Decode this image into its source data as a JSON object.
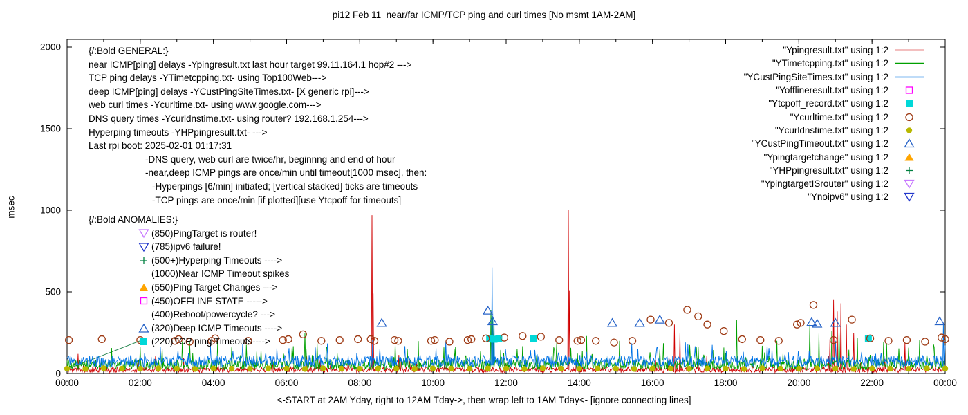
{
  "chart_data": {
    "type": "line",
    "title": "pi12 Feb 11  near/far ICMP/TCP ping and curl times [No msmt 1AM-2AM]",
    "xlabel": "<-START at 2AM Yday, right to 12AM Tday->, then wrap left to 1AM Tday<- [ignore connecting lines]",
    "ylabel": "msec",
    "ylim": [
      0,
      2050
    ],
    "xlim_hours": [
      0,
      24
    ],
    "grid": false,
    "legend_position": "top-right",
    "y_ticks": [
      {
        "v": 0,
        "t": "0"
      },
      {
        "v": 500,
        "t": "500"
      },
      {
        "v": 1000,
        "t": "1000"
      },
      {
        "v": 1500,
        "t": "1500"
      },
      {
        "v": 2000,
        "t": "2000"
      }
    ],
    "x_ticks": [
      {
        "h": 0,
        "t": "00:00"
      },
      {
        "h": 2,
        "t": "02:00"
      },
      {
        "h": 4,
        "t": "04:00"
      },
      {
        "h": 6,
        "t": "06:00"
      },
      {
        "h": 8,
        "t": "08:00"
      },
      {
        "h": 10,
        "t": "10:00"
      },
      {
        "h": 12,
        "t": "12:00"
      },
      {
        "h": 14,
        "t": "14:00"
      },
      {
        "h": 16,
        "t": "16:00"
      },
      {
        "h": 18,
        "t": "18:00"
      },
      {
        "h": 20,
        "t": "20:00"
      },
      {
        "h": 22,
        "t": "22:00"
      },
      {
        "h": 24,
        "t": "00:00"
      }
    ],
    "connectors": [
      {
        "color": "#2e8b57",
        "points": [
          [
            0.1,
            35
          ],
          [
            2.05,
            205
          ]
        ]
      }
    ],
    "series": [
      {
        "name": "Ypingresult.txt",
        "legend": "\"Ypingresult.txt\" using 1:2",
        "color": "#d00000",
        "style": "line",
        "seed": 101,
        "baseline": [
          6,
          40
        ],
        "spike_prob": 0.025,
        "spike_extra": 90,
        "spikes": [
          [
            0.3,
            120
          ],
          [
            8.33,
            970
          ],
          [
            8.37,
            490
          ],
          [
            13.7,
            1000
          ],
          [
            13.74,
            510
          ],
          [
            16.6,
            300
          ],
          [
            16.75,
            250
          ],
          [
            20.85,
            210
          ],
          [
            20.95,
            450
          ],
          [
            21.05,
            380
          ],
          [
            21.15,
            430
          ],
          [
            21.3,
            300
          ],
          [
            21.5,
            250
          ],
          [
            22.9,
            185
          ]
        ]
      },
      {
        "name": "YTimetcpping.txt",
        "legend": "\"YTimetcpping.txt\" using 1:2",
        "color": "#00a000",
        "style": "line",
        "seed": 202,
        "baseline": [
          22,
          85
        ],
        "spike_prob": 0.07,
        "spike_extra": 120,
        "spikes": [
          [
            2.6,
            150
          ],
          [
            3.35,
            190
          ],
          [
            4.5,
            160
          ],
          [
            5.3,
            145
          ],
          [
            6.5,
            250
          ],
          [
            7.1,
            160
          ],
          [
            9.3,
            150
          ],
          [
            10.3,
            160
          ],
          [
            11.58,
            390
          ],
          [
            11.64,
            350
          ],
          [
            12.3,
            150
          ],
          [
            13.3,
            160
          ],
          [
            14.2,
            230
          ],
          [
            15.1,
            200
          ],
          [
            16.3,
            185
          ],
          [
            17.2,
            160
          ],
          [
            18.3,
            330
          ],
          [
            19.0,
            170
          ],
          [
            19.4,
            200
          ],
          [
            20.3,
            300
          ],
          [
            20.55,
            245
          ],
          [
            20.9,
            260
          ],
          [
            21.1,
            265
          ],
          [
            21.6,
            220
          ],
          [
            22.4,
            185
          ],
          [
            23.3,
            205
          ],
          [
            23.7,
            160
          ]
        ]
      },
      {
        "name": "YCustPingSiteTimes.txt",
        "legend": "\"YCustPingSiteTimes.txt\" using 1:2",
        "color": "#0073e6",
        "style": "line",
        "seed": 303,
        "baseline": [
          40,
          110
        ],
        "spike_prob": 0.05,
        "spike_extra": 90,
        "spikes": [
          [
            8.35,
            205
          ],
          [
            11.62,
            650
          ],
          [
            11.66,
            380
          ],
          [
            16.9,
            190
          ],
          [
            21.0,
            200
          ],
          [
            23.95,
            310
          ]
        ]
      },
      {
        "name": "Yofflineresult.txt",
        "legend": "\"Yofflineresult.txt\" using 1:2",
        "color": "#ff00ff",
        "style": "points",
        "marker": "square-open",
        "points": []
      },
      {
        "name": "Ytcpoff_record.txt",
        "legend": "\"Ytcpoff_record.txt\" using 1:2",
        "color": "#00d8d8",
        "style": "points",
        "marker": "square-fill",
        "points": [
          [
            11.55,
            215
          ],
          [
            11.67,
            210
          ],
          [
            11.8,
            215
          ],
          [
            12.75,
            215
          ],
          [
            21.9,
            215
          ]
        ]
      },
      {
        "name": "Ycurltime.txt",
        "legend": "\"Ycurltime.txt\" using 1:2",
        "color": "#9e3a14",
        "style": "points",
        "marker": "circle-open",
        "points": [
          [
            0.05,
            205
          ],
          [
            0.95,
            210
          ],
          [
            2.0,
            205
          ],
          [
            2.95,
            200
          ],
          [
            3.05,
            210
          ],
          [
            3.35,
            195
          ],
          [
            3.95,
            200
          ],
          [
            4.05,
            215
          ],
          [
            4.95,
            200
          ],
          [
            5.9,
            205
          ],
          [
            6.05,
            210
          ],
          [
            6.45,
            240
          ],
          [
            6.95,
            200
          ],
          [
            7.45,
            205
          ],
          [
            7.95,
            210
          ],
          [
            8.3,
            210
          ],
          [
            8.4,
            200
          ],
          [
            8.95,
            205
          ],
          [
            9.05,
            200
          ],
          [
            9.95,
            200
          ],
          [
            10.05,
            205
          ],
          [
            10.45,
            195
          ],
          [
            10.95,
            205
          ],
          [
            11.05,
            210
          ],
          [
            11.45,
            215
          ],
          [
            11.95,
            220
          ],
          [
            12.45,
            230
          ],
          [
            12.95,
            225
          ],
          [
            13.45,
            205
          ],
          [
            13.95,
            200
          ],
          [
            14.05,
            205
          ],
          [
            14.45,
            200
          ],
          [
            14.95,
            190
          ],
          [
            15.45,
            200
          ],
          [
            15.95,
            330
          ],
          [
            16.45,
            310
          ],
          [
            16.95,
            390
          ],
          [
            17.25,
            350
          ],
          [
            17.5,
            300
          ],
          [
            17.95,
            260
          ],
          [
            18.45,
            210
          ],
          [
            18.95,
            205
          ],
          [
            19.45,
            200
          ],
          [
            19.95,
            300
          ],
          [
            20.05,
            310
          ],
          [
            20.4,
            420
          ],
          [
            20.95,
            205
          ],
          [
            21.45,
            330
          ],
          [
            21.95,
            215
          ],
          [
            22.45,
            200
          ],
          [
            22.95,
            205
          ],
          [
            23.45,
            195
          ],
          [
            23.9,
            220
          ],
          [
            24.0,
            210
          ]
        ]
      },
      {
        "name": "Ycurldnstime.txt",
        "legend": "\"Ycurldnstime.txt\" using 1:2",
        "color": "#b8b800",
        "style": "points",
        "marker": "circle-fill",
        "points": [
          [
            0,
            30
          ],
          [
            0.5,
            28
          ],
          [
            1,
            32
          ],
          [
            1.5,
            30
          ],
          [
            2,
            29
          ],
          [
            2.5,
            31
          ],
          [
            3,
            30
          ],
          [
            3.5,
            28
          ],
          [
            4,
            31
          ],
          [
            4.5,
            30
          ],
          [
            5,
            29
          ],
          [
            5.5,
            31
          ],
          [
            6,
            30
          ],
          [
            6.5,
            28
          ],
          [
            7,
            32
          ],
          [
            7.5,
            30
          ],
          [
            8,
            29
          ],
          [
            8.5,
            31
          ],
          [
            9,
            30
          ],
          [
            9.5,
            28
          ],
          [
            10,
            31
          ],
          [
            10.5,
            30
          ],
          [
            11,
            29
          ],
          [
            11.5,
            31
          ],
          [
            12,
            30
          ],
          [
            12.5,
            28
          ],
          [
            13,
            32
          ],
          [
            13.5,
            30
          ],
          [
            14,
            29
          ],
          [
            14.5,
            31
          ],
          [
            15,
            30
          ],
          [
            15.5,
            28
          ],
          [
            16,
            31
          ],
          [
            16.5,
            30
          ],
          [
            17,
            29
          ],
          [
            17.5,
            31
          ],
          [
            18,
            30
          ],
          [
            18.5,
            28
          ],
          [
            19,
            32
          ],
          [
            19.5,
            30
          ],
          [
            20,
            29
          ],
          [
            20.5,
            31
          ],
          [
            21,
            30
          ],
          [
            21.5,
            28
          ],
          [
            22,
            31
          ],
          [
            22.5,
            30
          ],
          [
            23,
            29
          ],
          [
            23.5,
            31
          ],
          [
            24,
            30
          ]
        ]
      },
      {
        "name": "YCustPingTimeout.txt",
        "legend": "\"YCustPingTimeout.txt\" using 1:2",
        "color": "#2864c8",
        "style": "points",
        "marker": "triangle-open",
        "points": [
          [
            8.6,
            310
          ],
          [
            11.5,
            385
          ],
          [
            11.63,
            320
          ],
          [
            14.9,
            310
          ],
          [
            15.65,
            310
          ],
          [
            16.2,
            330
          ],
          [
            20.35,
            315
          ],
          [
            20.5,
            305
          ],
          [
            21.0,
            310
          ],
          [
            23.85,
            320
          ]
        ]
      },
      {
        "name": "Ypingtargetchange",
        "legend": "\"Ypingtargetchange\" using 1:2",
        "color": "#ffa500",
        "style": "points",
        "marker": "triangle-fill",
        "points": []
      },
      {
        "name": "YHPpingresult.txt",
        "legend": "\"YHPpingresult.txt\" using 1:2",
        "color": "#008040",
        "style": "points",
        "marker": "plus",
        "points": []
      },
      {
        "name": "YpingtargetISrouter",
        "legend": "\"YpingtargetISrouter\" using 1:2",
        "color": "#c87aff",
        "style": "points",
        "marker": "nabla-open",
        "points": []
      },
      {
        "name": "Ynoipv6",
        "legend": "\"Ynoipv6\" using 1:2",
        "color": "#2237cc",
        "style": "points",
        "marker": "nabla-open",
        "points": []
      }
    ]
  },
  "annotations": {
    "general": [
      {
        "t": "{/:Bold GENERAL:}",
        "ind": 0
      },
      {
        "t": "near ICMP[ping] delays -Ypingresult.txt last hour target 99.11.164.1 hop#2 --->",
        "ind": 0
      },
      {
        "t": "TCP ping delays -YTimetcpping.txt- using Top100Web--->",
        "ind": 0
      },
      {
        "t": "deep ICMP[ping] delays -YCustPingSiteTimes.txt- [X generic rpi]--->",
        "ind": 0
      },
      {
        "t": "web curl times -Ycurltime.txt- using www.google.com--->",
        "ind": 0
      },
      {
        "t": "DNS query times -Ycurldnstime.txt- using router? 192.168.1.254--->",
        "ind": 0
      },
      {
        "t": "Hyperping timeouts -YHPpingresult.txt- --->",
        "ind": 0
      },
      {
        "t": "Last rpi boot: 2025-02-01 01:17:31",
        "ind": 0
      },
      {
        "t": "-DNS query, web curl are twice/hr, beginnng and end of hour",
        "ind": 1
      },
      {
        "t": "-near,deep ICMP pings are once/min until timeout[1000 msec], then:",
        "ind": 1
      },
      {
        "t": "-Hyperpings [6/min] initiated; [vertical stacked] ticks are timeouts",
        "ind": 2
      },
      {
        "t": "-TCP pings are once/min [if plotted][use Ytcpoff for timeouts]",
        "ind": 2
      }
    ],
    "anomalies_header": "{/:Bold ANOMALIES:}",
    "anomalies": [
      {
        "marker": "nabla-open",
        "color": "#c87aff",
        "text": "(850)PingTarget is router!"
      },
      {
        "marker": "nabla-open",
        "color": "#2237cc",
        "text": "(785)ipv6 failure!"
      },
      {
        "marker": "plus",
        "color": "#008040",
        "text": "(500+)Hyperping Timeouts ---->"
      },
      {
        "marker": "none",
        "color": "",
        "text": "(1000)Near ICMP Timeout spikes"
      },
      {
        "marker": "triangle-fill",
        "color": "#ffa500",
        "text": "(550)Ping Target Changes --->"
      },
      {
        "marker": "square-open",
        "color": "#ff00ff",
        "text": "(450)OFFLINE STATE ----->"
      },
      {
        "marker": "none",
        "color": "",
        "text": "(400)Reboot/powercycle? --->"
      },
      {
        "marker": "triangle-open",
        "color": "#2864c8",
        "text": "(320)Deep ICMP Timeouts ---->"
      },
      {
        "marker": "square-fill",
        "color": "#00d8d8",
        "text": "(220)TCP ping Timeouts---->"
      }
    ]
  }
}
